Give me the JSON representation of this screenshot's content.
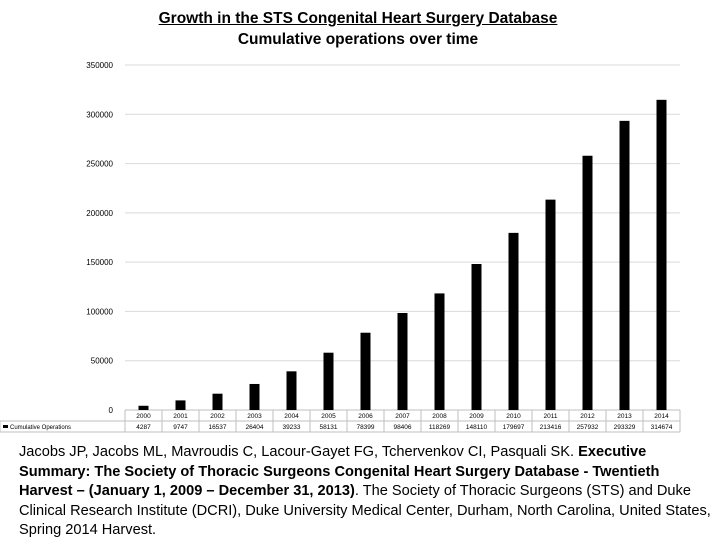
{
  "chart_data": {
    "type": "bar",
    "title": "Growth in the STS Congenital Heart Surgery Database",
    "subtitle": "Cumulative operations over time",
    "categories": [
      "2000",
      "2001",
      "2002",
      "2003",
      "2004",
      "2005",
      "2006",
      "2007",
      "2008",
      "2009",
      "2010",
      "2011",
      "2012",
      "2013",
      "2014"
    ],
    "series": [
      {
        "name": "Cumulative Operations",
        "values": [
          4287,
          9747,
          16537,
          26404,
          39233,
          58131,
          78399,
          98406,
          118269,
          148110,
          179697,
          213416,
          257932,
          293329,
          314674
        ],
        "value_labels": [
          "4287",
          "9747",
          "16537",
          "26404",
          "39233",
          "58131",
          "78399",
          "98406",
          "118269",
          "148110",
          "179697",
          "213416",
          "257932",
          "293329",
          "314674"
        ]
      }
    ],
    "yticks": [
      "0",
      "50000",
      "100000",
      "150000",
      "200000",
      "250000",
      "300000",
      "350000"
    ],
    "ylim": [
      0,
      350000
    ],
    "grid": true,
    "legend": "data-table",
    "colors": {
      "bar": "#000000",
      "grid": "#d9d9d9",
      "table_border": "#bfbfbf"
    }
  },
  "caption": {
    "authors": "Jacobs JP, Jacobs ML, Mavroudis C, Lacour-Gayet FG, Tchervenkov CI, Pasquali SK.",
    "title_bold": "Executive Summary: The Society of Thoracic Surgeons Congenital Heart Surgery Database - Twentieth Harvest – (January 1, 2009 – December 31, 2013)",
    "rest": ". The Society of Thoracic Surgeons (STS) and Duke Clinical Research Institute (DCRI), Duke University Medical Center, Durham, North Carolina, United States, Spring 2014 Harvest."
  }
}
